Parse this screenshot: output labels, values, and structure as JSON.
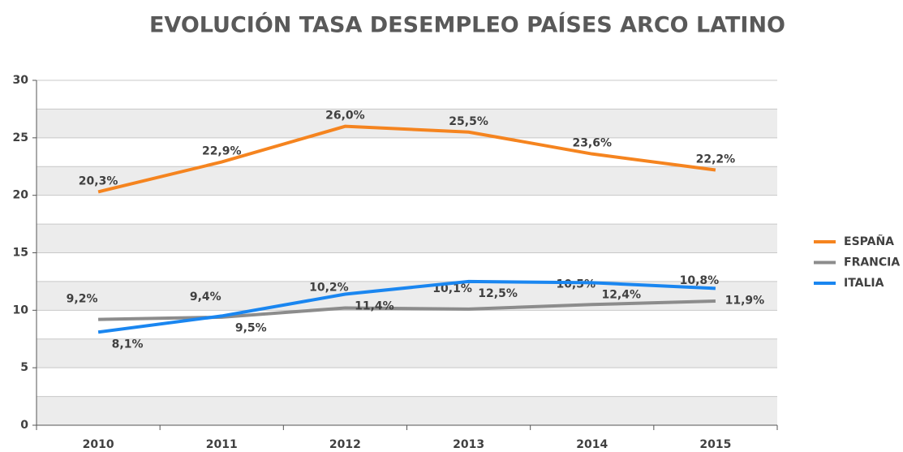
{
  "chart_data": {
    "type": "line",
    "title": "EVOLUCIÓN TASA DESEMPLEO PAÍSES ARCO LATINO",
    "categories": [
      "2010",
      "2011",
      "2012",
      "2013",
      "2014",
      "2015"
    ],
    "series": [
      {
        "name": "ESPAÑA",
        "color": "#f5841f",
        "values": [
          20.3,
          22.9,
          26.0,
          25.5,
          23.6,
          22.2
        ],
        "value_labels": [
          "20,3%",
          "22,9%",
          "26,0%",
          "25,5%",
          "23,6%",
          "22,2%"
        ]
      },
      {
        "name": "FRANCIA",
        "color": "#8c8c8c",
        "values": [
          9.2,
          9.4,
          10.2,
          10.1,
          10.5,
          10.8
        ],
        "value_labels": [
          "9,2%",
          "9,4%",
          "10,2%",
          "10,1%",
          "10,5%",
          "10,8%"
        ]
      },
      {
        "name": "ITALIA",
        "color": "#1a86f0",
        "values": [
          8.1,
          9.5,
          11.4,
          12.5,
          12.4,
          11.9
        ],
        "value_labels": [
          "8,1%",
          "9,5%",
          "11,4%",
          "12,5%",
          "12,4%",
          "11,9%"
        ]
      }
    ],
    "ylim": [
      0,
      30
    ],
    "yticks": [
      0,
      5,
      10,
      15,
      20,
      25,
      30
    ],
    "grid": true,
    "legend": "right"
  }
}
